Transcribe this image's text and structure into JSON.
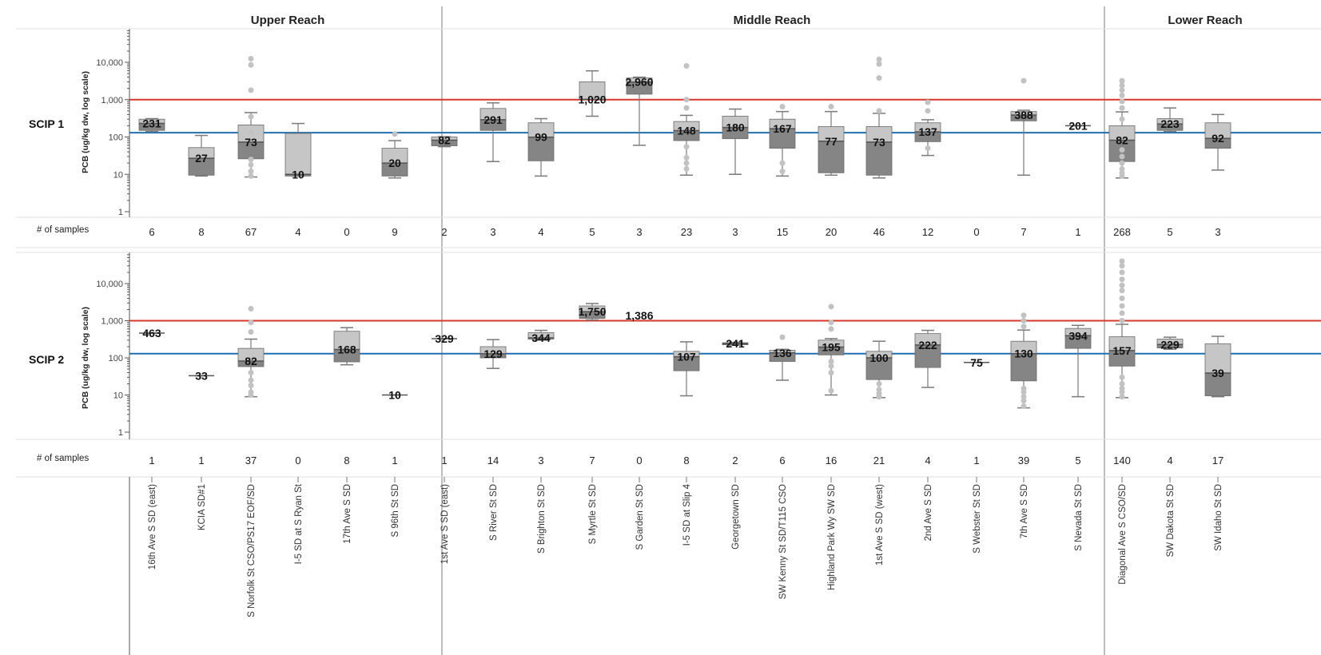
{
  "chart_data": {
    "type": "box",
    "reaches": [
      {
        "name": "Upper Reach",
        "categories": [
          "16th Ave S SD (east)",
          "KCIA SD#1",
          "S Norfolk St CSO/PS17 EOF/SD",
          "I-5 SD at S Ryan St",
          "17th Ave S SD",
          "S 96th St SD"
        ]
      },
      {
        "name": "Middle Reach",
        "categories": [
          "1st Ave S SD (east)",
          "S River St SD",
          "S Brighton St SD",
          "S Myrtle St SD",
          "S Garden St SD",
          "I-5 SD at Slip 4",
          "Georgetown SD",
          "SW Kenny St SD/T115 CSO",
          "Highland Park Wy SW SD",
          "1st Ave S SD (west)",
          "2nd Ave S SD",
          "S Webster St SD",
          "7th Ave S SD"
        ]
      },
      {
        "name": "Lower Reach",
        "categories": [
          "S Nevada St SD",
          "Diagonal Ave S CSO/SD",
          "SW Dakota St SD",
          "SW Idaho St SD"
        ]
      }
    ],
    "y_axis": {
      "title": "PCB (ug/kg dw, log scale)",
      "scale": "log",
      "range": [
        1,
        60000
      ],
      "ticks": [
        1,
        10,
        100,
        1000,
        10000
      ],
      "tick_labels": [
        "1",
        "10",
        "100",
        "1,000",
        "10,000"
      ]
    },
    "reference_lines": [
      {
        "value": 1000,
        "color": "#d9372a"
      },
      {
        "value": 130,
        "color": "#1f6fb2"
      }
    ],
    "samples_label": "# of samples",
    "colors": {
      "box_light": "#c6c6c6",
      "box_dark": "#858585",
      "box_edge": "#6a6a6a",
      "whisker": "#7a7a7a",
      "outlier": "#c2c2c2",
      "divider": "#bdbdbd"
    },
    "panels": [
      {
        "name": "SCIP 1",
        "samples": [
          "6",
          "8",
          "67",
          "4",
          "0",
          "9",
          "2",
          "3",
          "4",
          "5",
          "3",
          "23",
          "3",
          "15",
          "20",
          "46",
          "12",
          "0",
          "7",
          "1",
          "268",
          "5",
          "3"
        ],
        "median_labels": [
          "231",
          "27",
          "73",
          "10",
          "",
          "20",
          "82",
          "291",
          "99",
          "1,020",
          "2,960",
          "148",
          "180",
          "167",
          "77",
          "73",
          "137",
          "",
          "388",
          "201",
          "82",
          "223",
          "92"
        ],
        "boxes": [
          {
            "whisker_low": 140,
            "q1": 150,
            "median": 231,
            "q3": 300,
            "whisker_high": 310,
            "outliers": []
          },
          {
            "whisker_low": 9,
            "q1": 9.5,
            "median": 27,
            "q3": 52,
            "whisker_high": 110,
            "outliers": []
          },
          {
            "whisker_low": 8.5,
            "q1": 26,
            "median": 73,
            "q3": 210,
            "whisker_high": 450,
            "outliers": [
              9,
              12,
              18,
              25,
              130,
              350,
              1800,
              8500,
              12500
            ]
          },
          {
            "whisker_low": 9,
            "q1": 9,
            "median": 10,
            "q3": 125,
            "whisker_high": 230,
            "outliers": []
          },
          null,
          {
            "whisker_low": 8,
            "q1": 9,
            "median": 20,
            "q3": 50,
            "whisker_high": 80,
            "outliers": [
              120
            ]
          },
          {
            "whisker_low": 55,
            "q1": 58,
            "median": 82,
            "q3": 100,
            "whisker_high": 102,
            "outliers": []
          },
          {
            "whisker_low": 22,
            "q1": 150,
            "median": 291,
            "q3": 580,
            "whisker_high": 820,
            "outliers": []
          },
          {
            "whisker_low": 9,
            "q1": 23,
            "median": 99,
            "q3": 240,
            "whisker_high": 310,
            "outliers": []
          },
          {
            "whisker_low": 360,
            "q1": 1020,
            "median": 1020,
            "q3": 3000,
            "whisker_high": 5900,
            "outliers": []
          },
          {
            "whisker_low": 60,
            "q1": 1400,
            "median": 2960,
            "q3": 3800,
            "whisker_high": 4000,
            "outliers": []
          },
          {
            "whisker_low": 9.5,
            "q1": 80,
            "median": 148,
            "q3": 260,
            "whisker_high": 380,
            "outliers": [
              14,
              20,
              28,
              55,
              600,
              1000,
              8000
            ]
          },
          {
            "whisker_low": 10,
            "q1": 90,
            "median": 180,
            "q3": 360,
            "whisker_high": 560,
            "outliers": []
          },
          {
            "whisker_low": 9,
            "q1": 50,
            "median": 167,
            "q3": 300,
            "whisker_high": 480,
            "outliers": [
              12,
              20,
              650
            ]
          },
          {
            "whisker_low": 9.5,
            "q1": 11,
            "median": 77,
            "q3": 190,
            "whisker_high": 480,
            "outliers": [
              650
            ]
          },
          {
            "whisker_low": 8,
            "q1": 9.5,
            "median": 73,
            "q3": 190,
            "whisker_high": 430,
            "outliers": [
              500,
              3800,
              9000,
              12000
            ]
          },
          {
            "whisker_low": 32,
            "q1": 75,
            "median": 137,
            "q3": 240,
            "whisker_high": 290,
            "outliers": [
              50,
              500,
              850
            ]
          },
          null,
          {
            "whisker_low": 9.5,
            "q1": 270,
            "median": 388,
            "q3": 480,
            "whisker_high": 520,
            "outliers": [
              3200
            ]
          },
          {
            "whisker_low": 201,
            "q1": 201,
            "median": 201,
            "q3": 201,
            "whisker_high": 201,
            "outliers": []
          },
          {
            "whisker_low": 8,
            "q1": 22,
            "median": 82,
            "q3": 200,
            "whisker_high": 470,
            "outliers": [
              9,
              11,
              14,
              20,
              30,
              45,
              300,
              600,
              900,
              1300,
              1800,
              2400,
              3200
            ]
          },
          {
            "whisker_low": 140,
            "q1": 150,
            "median": 223,
            "q3": 310,
            "whisker_high": 600,
            "outliers": []
          },
          {
            "whisker_low": 13,
            "q1": 50,
            "median": 92,
            "q3": 240,
            "whisker_high": 400,
            "outliers": []
          }
        ]
      },
      {
        "name": "SCIP 2",
        "samples": [
          "1",
          "1",
          "37",
          "0",
          "8",
          "1",
          "1",
          "14",
          "3",
          "7",
          "0",
          "8",
          "2",
          "6",
          "16",
          "21",
          "4",
          "1",
          "39",
          "5",
          "140",
          "4",
          "17"
        ],
        "median_labels": [
          "463",
          "33",
          "82",
          "",
          "168",
          "10",
          "329",
          "129",
          "344",
          "1,750",
          "1,386",
          "107",
          "241",
          "136",
          "195",
          "100",
          "222",
          "75",
          "130",
          "394",
          "157",
          "229",
          "39"
        ],
        "boxes": [
          {
            "whisker_low": 463,
            "q1": 463,
            "median": 463,
            "q3": 463,
            "whisker_high": 463,
            "outliers": []
          },
          {
            "whisker_low": 33,
            "q1": 33,
            "median": 33,
            "q3": 33,
            "whisker_high": 33,
            "outliers": []
          },
          {
            "whisker_low": 9,
            "q1": 58,
            "median": 82,
            "q3": 180,
            "whisker_high": 320,
            "outliers": [
              10,
              12,
              18,
              25,
              40,
              500,
              900,
              2100
            ]
          },
          null,
          {
            "whisker_low": 65,
            "q1": 78,
            "median": 168,
            "q3": 520,
            "whisker_high": 650,
            "outliers": []
          },
          {
            "whisker_low": 10,
            "q1": 10,
            "median": 10,
            "q3": 10,
            "whisker_high": 10,
            "outliers": []
          },
          {
            "whisker_low": 329,
            "q1": 329,
            "median": 329,
            "q3": 329,
            "whisker_high": 329,
            "outliers": []
          },
          {
            "whisker_low": 52,
            "q1": 100,
            "median": 129,
            "q3": 200,
            "whisker_high": 310,
            "outliers": []
          },
          {
            "whisker_low": 300,
            "q1": 320,
            "median": 344,
            "q3": 480,
            "whisker_high": 550,
            "outliers": []
          },
          {
            "whisker_low": 1050,
            "q1": 1150,
            "median": 1750,
            "q3": 2500,
            "whisker_high": 2900,
            "outliers": []
          },
          null,
          {
            "whisker_low": 9.5,
            "q1": 45,
            "median": 107,
            "q3": 150,
            "whisker_high": 270,
            "outliers": []
          },
          {
            "whisker_low": 220,
            "q1": 225,
            "median": 241,
            "q3": 255,
            "whisker_high": 262,
            "outliers": []
          },
          {
            "whisker_low": 25,
            "q1": 80,
            "median": 136,
            "q3": 160,
            "whisker_high": 170,
            "outliers": [
              360
            ]
          },
          {
            "whisker_low": 10,
            "q1": 120,
            "median": 195,
            "q3": 300,
            "whisker_high": 330,
            "outliers": [
              13,
              40,
              60,
              80,
              600,
              900,
              2400
            ]
          },
          {
            "whisker_low": 8.5,
            "q1": 26,
            "median": 100,
            "q3": 150,
            "whisker_high": 280,
            "outliers": [
              9,
              11,
              14,
              20
            ]
          },
          {
            "whisker_low": 16,
            "q1": 55,
            "median": 222,
            "q3": 450,
            "whisker_high": 550,
            "outliers": []
          },
          {
            "whisker_low": 75,
            "q1": 75,
            "median": 75,
            "q3": 75,
            "whisker_high": 75,
            "outliers": []
          },
          {
            "whisker_low": 4.5,
            "q1": 24,
            "median": 130,
            "q3": 280,
            "whisker_high": 560,
            "outliers": [
              5,
              7,
              9,
              12,
              15,
              700,
              1000,
              1400
            ]
          },
          {
            "whisker_low": 9,
            "q1": 180,
            "median": 394,
            "q3": 620,
            "whisker_high": 750,
            "outliers": []
          },
          {
            "whisker_low": 8.5,
            "q1": 60,
            "median": 157,
            "q3": 370,
            "whisker_high": 800,
            "outliers": [
              9,
              12,
              15,
              20,
              30,
              1000,
              1600,
              2500,
              4000,
              6500,
              9000,
              13000,
              20000,
              30000,
              40000
            ]
          },
          {
            "whisker_low": 170,
            "q1": 185,
            "median": 229,
            "q3": 320,
            "whisker_high": 360,
            "outliers": []
          },
          {
            "whisker_low": 9,
            "q1": 9.5,
            "median": 39,
            "q3": 240,
            "whisker_high": 380,
            "outliers": []
          }
        ]
      }
    ]
  }
}
